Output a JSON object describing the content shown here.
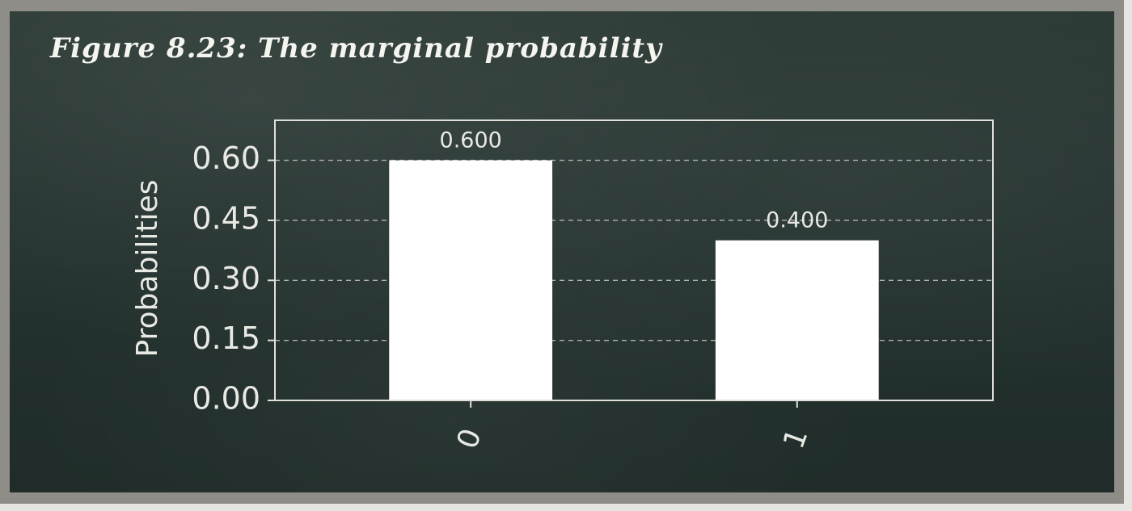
{
  "figure": {
    "caption": "Figure 8.23: The marginal probability"
  },
  "colors": {
    "bar": "#ffffff",
    "text": "#e9e9e4",
    "grid": "#c8c8c2",
    "axes": "#e0e0da"
  },
  "chart_data": {
    "type": "bar",
    "categories": [
      "0",
      "1"
    ],
    "values": [
      0.6,
      0.4
    ],
    "data_labels": [
      "0.600",
      "0.400"
    ],
    "title": "",
    "xlabel": "",
    "ylabel": "Probabilities",
    "ylim": [
      0,
      0.7
    ],
    "yticks": [
      0,
      0.15,
      0.3,
      0.45,
      0.6
    ],
    "ytick_labels": [
      "0.00",
      "0.15",
      "0.30",
      "0.45",
      "0.60"
    ],
    "grid": "horizontal-dashed",
    "xtick_rotation": "70deg"
  }
}
